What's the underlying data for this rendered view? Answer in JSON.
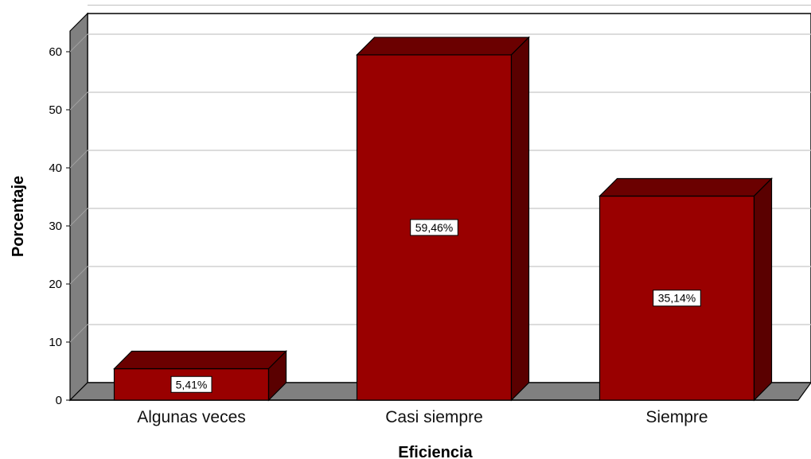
{
  "chart_data": {
    "type": "bar",
    "title": "",
    "xlabel": "Eficiencia",
    "ylabel": "Porcentaje",
    "categories": [
      "Algunas veces",
      "Casi siempre",
      "Siempre"
    ],
    "values": [
      5.41,
      59.46,
      35.14
    ],
    "data_labels": [
      "5,41%",
      "59,46%",
      "35,14%"
    ],
    "yticks": [
      "0",
      "10",
      "20",
      "30",
      "40",
      "50",
      "60"
    ],
    "ylim": [
      0,
      65
    ],
    "grid": true,
    "style": "3d",
    "colors": {
      "bar_front": "#990000",
      "bar_top": "#6b0000",
      "bar_side": "#5a0000",
      "back_wall": "#ffffff",
      "side_wall": "#808080",
      "floor": "#808080",
      "gridline": "#c8c8c8"
    }
  }
}
